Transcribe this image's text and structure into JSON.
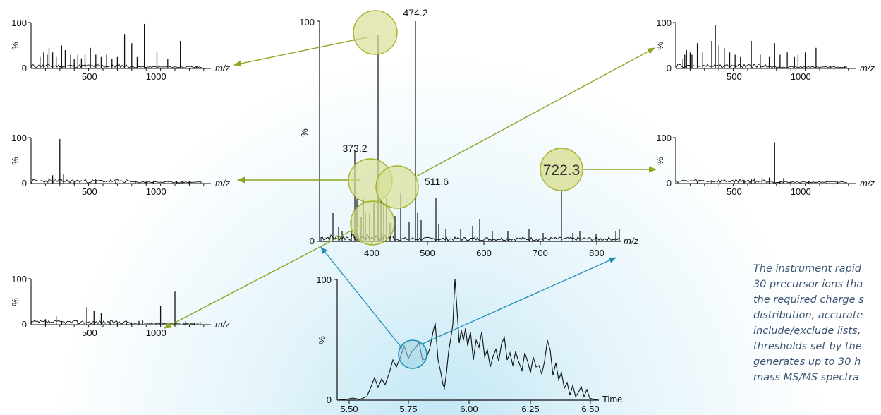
{
  "colors": {
    "arrow_green": "#8ea623",
    "circle_fill": "#d9df98",
    "circle_stroke": "#a5b32a",
    "arrow_blue": "#1e8fb4",
    "blue_fill": "#9fd3e6",
    "ink": "#111111",
    "caption": "#3b5573"
  },
  "main_spectrum": {
    "y_top": "100",
    "y_zero": "0",
    "y_label": "%",
    "x_label": "m/z",
    "x_ticks": [
      "400",
      "500",
      "600",
      "700",
      "800"
    ],
    "peak_labels": {
      "p474": "474.2",
      "p373": "373.2",
      "p511": "511.6",
      "p722": "722.3"
    }
  },
  "chromatogram": {
    "y_top": "100",
    "y_zero": "0",
    "y_label": "%",
    "x_label": "Time",
    "x_ticks": [
      "5.50",
      "5.75",
      "6.00",
      "6.25",
      "6.50"
    ]
  },
  "small_spectra": {
    "y_top": "100",
    "y_zero": "0",
    "y_label": "%",
    "x_label": "m/z",
    "x_ticks": [
      "500",
      "1000"
    ]
  },
  "caption": {
    "lines": [
      "The instrument rapid",
      "30 precursor ions tha",
      "the required charge s",
      "distribution, accurate",
      "include/exclude lists,",
      "thresholds set by the",
      "generates up to 30 h",
      "mass MS/MS spectra"
    ]
  }
}
